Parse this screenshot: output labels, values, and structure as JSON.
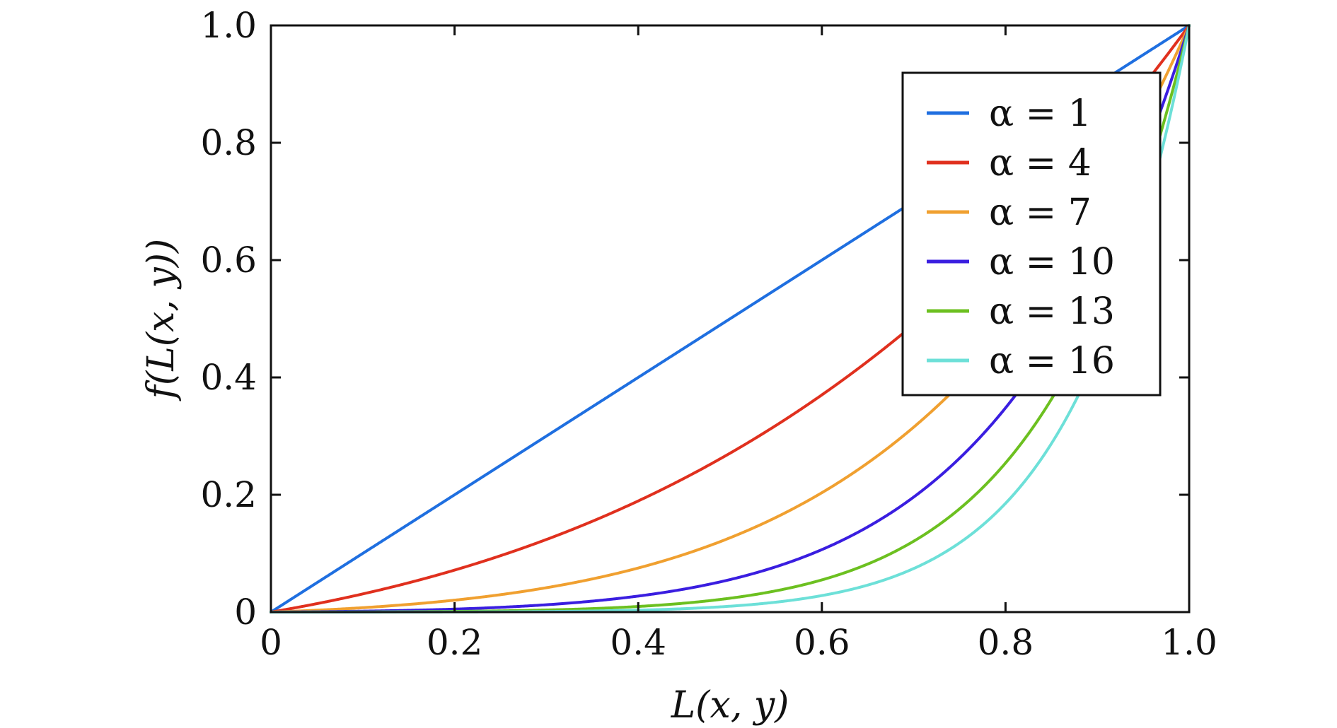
{
  "chart_data": {
    "type": "line",
    "xlabel": "L(x, y)",
    "ylabel": "f(L(x, y))",
    "xlim": [
      0,
      1.0
    ],
    "ylim": [
      0,
      1.0
    ],
    "x_ticks": [
      "0",
      "0.2",
      "0.4",
      "0.6",
      "0.8",
      "1.0"
    ],
    "y_ticks": [
      "0",
      "0.2",
      "0.4",
      "0.6",
      "0.8",
      "1.0"
    ],
    "legend_position": "top-right",
    "grid": false,
    "series": [
      {
        "name": "α = 1",
        "alpha": 1,
        "color": "#1f6fe0"
      },
      {
        "name": "α = 4",
        "alpha": 4,
        "color": "#e0301e"
      },
      {
        "name": "α = 7",
        "alpha": 7,
        "color": "#f0a030"
      },
      {
        "name": "α = 10",
        "alpha": 10,
        "color": "#3a1ee0"
      },
      {
        "name": "α = 13",
        "alpha": 13,
        "color": "#6cc020"
      },
      {
        "name": "α = 16",
        "alpha": 16,
        "color": "#6de0d8"
      }
    ]
  }
}
